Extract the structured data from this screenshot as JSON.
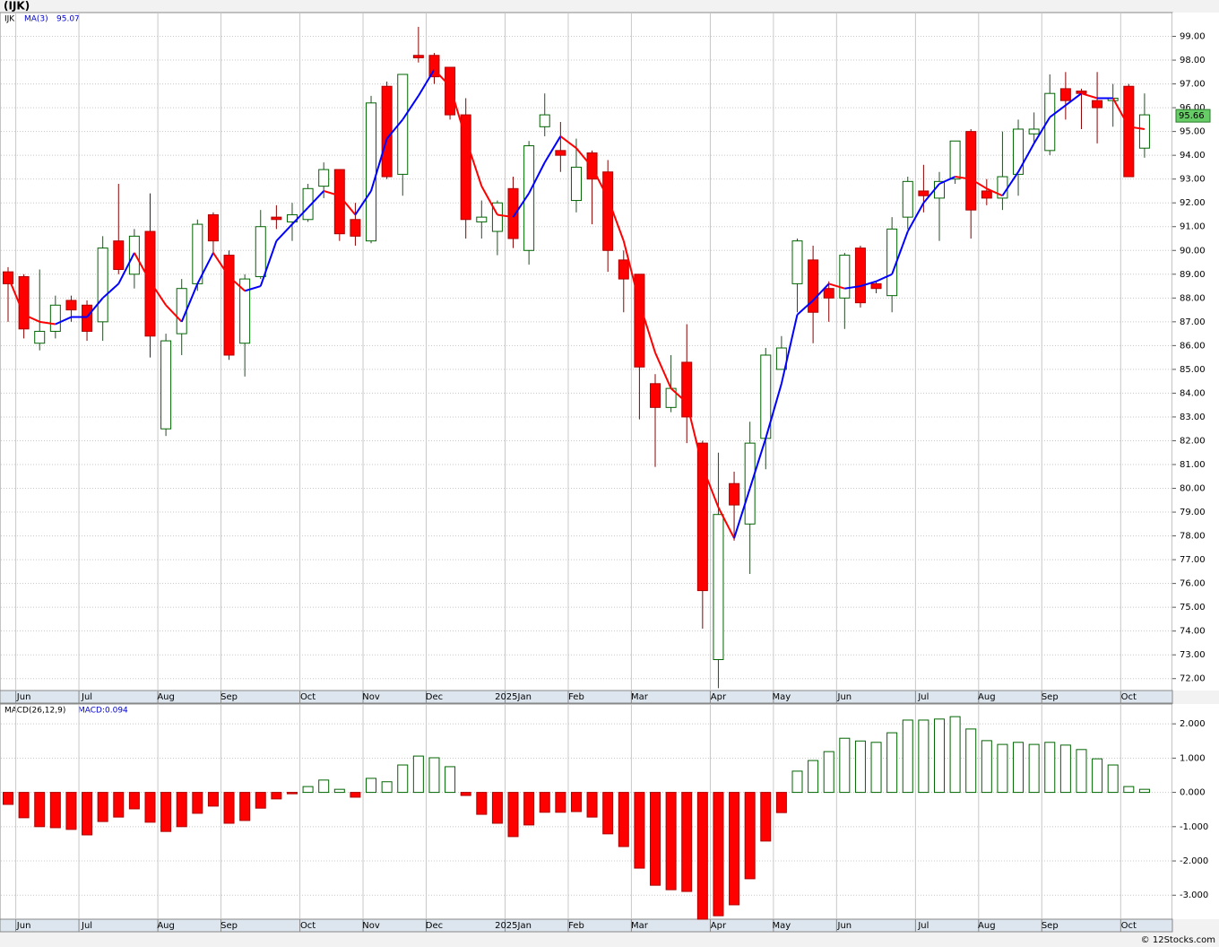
{
  "footer": "© 12Stocks.com",
  "chart_data": [
    {
      "type": "candlestick",
      "title": "(IJK)",
      "symbol": "IJK",
      "categories": [
        null,
        "Jun",
        null,
        null,
        null,
        "Jul",
        null,
        null,
        null,
        null,
        "Aug",
        null,
        null,
        null,
        "Sep",
        null,
        null,
        null,
        null,
        "Oct",
        null,
        null,
        null,
        "Nov",
        null,
        null,
        null,
        "Dec",
        null,
        null,
        null,
        null,
        "2025Jan",
        null,
        null,
        null,
        "Feb",
        null,
        null,
        null,
        "Mar",
        null,
        null,
        null,
        null,
        "Apr",
        null,
        null,
        null,
        "May",
        null,
        null,
        null,
        "Jun",
        null,
        null,
        null,
        null,
        "Jul",
        null,
        null,
        null,
        "Aug",
        null,
        null,
        null,
        "Sep",
        null,
        null,
        null,
        null,
        "Oct",
        null
      ],
      "open": [
        89.1,
        88.9,
        86.1,
        86.6,
        87.9,
        87.7,
        87.0,
        90.4,
        89.0,
        90.8,
        82.5,
        86.5,
        88.6,
        91.5,
        89.8,
        86.1,
        88.9,
        91.4,
        91.2,
        91.3,
        92.7,
        93.4,
        91.3,
        90.4,
        96.9,
        93.2,
        98.2,
        98.2,
        97.7,
        95.7,
        91.2,
        90.8,
        92.6,
        90.0,
        95.2,
        94.2,
        92.1,
        94.1,
        93.3,
        89.6,
        89.0,
        84.4,
        83.4,
        85.3,
        81.9,
        72.8,
        80.2,
        78.5,
        82.1,
        85.0,
        88.6,
        89.6,
        88.4,
        88.0,
        90.1,
        88.6,
        88.1,
        91.4,
        92.5,
        92.2,
        93.0,
        95.0,
        92.5,
        92.2,
        93.2,
        94.9,
        94.2,
        96.8,
        96.7,
        96.3,
        96.3,
        96.9,
        94.3
      ],
      "high": [
        89.3,
        89.0,
        89.2,
        88.1,
        88.1,
        87.9,
        90.6,
        92.8,
        90.9,
        92.4,
        86.5,
        88.8,
        91.3,
        91.6,
        90.0,
        89.0,
        91.7,
        91.9,
        92.0,
        92.8,
        93.7,
        93.4,
        92.0,
        96.5,
        97.1,
        97.4,
        99.4,
        98.3,
        97.7,
        96.4,
        92.1,
        92.1,
        93.1,
        94.6,
        96.6,
        95.4,
        94.7,
        94.2,
        93.8,
        90.0,
        89.0,
        84.8,
        85.6,
        86.9,
        82.0,
        81.5,
        80.7,
        82.8,
        85.9,
        86.4,
        90.5,
        90.2,
        88.7,
        89.9,
        90.2,
        88.7,
        91.4,
        93.1,
        93.6,
        93.3,
        94.6,
        95.1,
        93.0,
        95.0,
        95.5,
        95.8,
        97.4,
        97.5,
        96.8,
        97.5,
        97.0,
        97.0,
        96.6
      ],
      "low": [
        87.0,
        86.3,
        85.8,
        86.3,
        87.0,
        86.2,
        86.2,
        89.0,
        88.4,
        85.5,
        82.2,
        85.6,
        88.3,
        89.9,
        85.4,
        84.7,
        88.8,
        90.9,
        90.4,
        91.2,
        92.2,
        90.4,
        90.2,
        90.3,
        93.0,
        92.3,
        97.9,
        97.0,
        95.5,
        90.5,
        90.5,
        89.8,
        90.1,
        89.4,
        94.8,
        93.3,
        91.6,
        91.1,
        89.1,
        87.4,
        82.9,
        80.9,
        83.2,
        81.9,
        74.1,
        71.6,
        77.8,
        76.4,
        80.8,
        85.0,
        87.4,
        86.1,
        87.0,
        86.7,
        87.6,
        88.2,
        87.4,
        90.9,
        91.6,
        90.4,
        92.8,
        90.5,
        91.9,
        91.7,
        92.3,
        94.5,
        94.0,
        95.5,
        95.1,
        94.5,
        95.2,
        93.1,
        93.9
      ],
      "close": [
        88.6,
        86.7,
        86.6,
        87.7,
        87.5,
        86.6,
        90.1,
        89.2,
        90.6,
        86.4,
        86.2,
        88.4,
        91.1,
        90.4,
        85.6,
        88.8,
        91.0,
        91.3,
        91.5,
        92.6,
        93.4,
        90.7,
        90.6,
        96.2,
        93.1,
        97.4,
        98.1,
        97.3,
        95.7,
        91.3,
        91.4,
        92.0,
        90.5,
        94.4,
        95.7,
        94.0,
        93.5,
        93.0,
        90.0,
        88.8,
        85.1,
        83.4,
        84.2,
        83.0,
        75.7,
        78.9,
        79.3,
        81.9,
        85.6,
        85.9,
        90.4,
        87.4,
        88.0,
        89.8,
        87.8,
        88.4,
        90.9,
        92.9,
        92.3,
        92.9,
        94.6,
        91.7,
        92.2,
        93.1,
        95.1,
        95.1,
        96.6,
        96.3,
        96.6,
        96.0,
        96.4,
        93.1,
        95.7
      ],
      "up_color": "#006400",
      "down_color": "#ff0000",
      "ma": {
        "name": "MA(3)",
        "value": 95.07,
        "up_color": "#0000ff",
        "down_color": "#ff0000",
        "values": [
          88.9,
          87.3,
          87.0,
          86.9,
          87.2,
          87.2,
          88.0,
          88.6,
          89.9,
          88.7,
          87.7,
          87.0,
          88.6,
          89.9,
          88.9,
          88.3,
          88.5,
          90.4,
          91.1,
          91.8,
          92.5,
          92.3,
          91.5,
          92.5,
          94.7,
          95.5,
          96.5,
          97.6,
          96.9,
          94.7,
          92.7,
          91.5,
          91.4,
          92.4,
          93.7,
          94.8,
          94.3,
          93.5,
          92.2,
          90.4,
          87.8,
          85.7,
          84.2,
          83.6,
          80.9,
          79.2,
          77.9,
          80.0,
          82.1,
          84.4,
          87.3,
          87.9,
          88.6,
          88.4,
          88.5,
          88.7,
          89.0,
          90.8,
          92.0,
          92.8,
          93.1,
          93.0,
          92.6,
          92.3,
          93.3,
          94.5,
          95.6,
          96.1,
          96.6,
          96.4,
          96.4,
          95.2,
          95.1
        ]
      },
      "last_price": 95.66,
      "last_price_color": "#66cc66",
      "ylim": [
        71.5,
        100
      ],
      "yticks": [
        {
          "value": 72,
          "label": "72.00"
        },
        {
          "value": 73,
          "label": "73.00"
        },
        {
          "value": 74,
          "label": "74.00"
        },
        {
          "value": 75,
          "label": "75.00"
        },
        {
          "value": 76,
          "label": "76.00"
        },
        {
          "value": 77,
          "label": "77.00"
        },
        {
          "value": 78,
          "label": "78.00"
        },
        {
          "value": 79,
          "label": "79.00"
        },
        {
          "value": 80,
          "label": "80.00"
        },
        {
          "value": 81,
          "label": "81.00"
        },
        {
          "value": 82,
          "label": "82.00"
        },
        {
          "value": 83,
          "label": "83.00"
        },
        {
          "value": 84,
          "label": "84.00"
        },
        {
          "value": 85,
          "label": "85.00"
        },
        {
          "value": 86,
          "label": "86.00"
        },
        {
          "value": 87,
          "label": "87.00"
        },
        {
          "value": 88,
          "label": "88.00"
        },
        {
          "value": 89,
          "label": "89.00"
        },
        {
          "value": 90,
          "label": "90.00"
        },
        {
          "value": 91,
          "label": "91.00"
        },
        {
          "value": 92,
          "label": "92.00"
        },
        {
          "value": 93,
          "label": "93.00"
        },
        {
          "value": 94,
          "label": "94.00"
        },
        {
          "value": 95,
          "label": "95.00"
        },
        {
          "value": 96,
          "label": "96.00"
        },
        {
          "value": 97,
          "label": "97.00"
        },
        {
          "value": 98,
          "label": "98.00"
        },
        {
          "value": 99,
          "label": "99.00"
        }
      ],
      "grid": true
    },
    {
      "type": "macd",
      "title": "MACD(26,12,9)",
      "legend": "MACD:0.094",
      "categories": [
        null,
        "Jun",
        null,
        null,
        null,
        "Jul",
        null,
        null,
        null,
        null,
        "Aug",
        null,
        null,
        null,
        "Sep",
        null,
        null,
        null,
        null,
        "Oct",
        null,
        null,
        null,
        "Nov",
        null,
        null,
        null,
        "Dec",
        null,
        null,
        null,
        null,
        "2025Jan",
        null,
        null,
        null,
        "Feb",
        null,
        null,
        null,
        "Mar",
        null,
        null,
        null,
        null,
        "Apr",
        null,
        null,
        null,
        "May",
        null,
        null,
        null,
        "Jun",
        null,
        null,
        null,
        null,
        "Jul",
        null,
        null,
        null,
        "Aug",
        null,
        null,
        null,
        "Sep",
        null,
        null,
        null,
        null,
        "Oct",
        null
      ],
      "values": [
        -0.35,
        -0.74,
        -1.0,
        -1.03,
        -1.08,
        -1.24,
        -0.85,
        -0.72,
        -0.48,
        -0.87,
        -1.14,
        -1.0,
        -0.61,
        -0.4,
        -0.9,
        -0.82,
        -0.46,
        -0.19,
        -0.04,
        0.17,
        0.36,
        0.09,
        -0.14,
        0.41,
        0.31,
        0.8,
        1.06,
        1.01,
        0.75,
        -0.09,
        -0.64,
        -0.9,
        -1.29,
        -0.95,
        -0.58,
        -0.58,
        -0.56,
        -0.72,
        -1.21,
        -1.58,
        -2.21,
        -2.71,
        -2.84,
        -2.89,
        -3.7,
        -3.6,
        -3.28,
        -2.52,
        -1.42,
        -0.59,
        0.62,
        0.93,
        1.19,
        1.58,
        1.5,
        1.46,
        1.74,
        2.11,
        2.11,
        2.14,
        2.21,
        1.85,
        1.51,
        1.4,
        1.46,
        1.4,
        1.46,
        1.38,
        1.25,
        0.98,
        0.8,
        0.17,
        0.09
      ],
      "up_color": "#006400",
      "down_color": "#ff0000",
      "ylim": [
        -3.7,
        2.58
      ],
      "yticks": [
        {
          "value": 2,
          "label": "2.000"
        },
        {
          "value": 1,
          "label": "1.000"
        },
        {
          "value": 0,
          "label": "0.000"
        },
        {
          "value": -1,
          "label": "-1.000"
        },
        {
          "value": -2,
          "label": "-2.000"
        },
        {
          "value": -3,
          "label": "-3.000"
        }
      ],
      "grid": true
    }
  ]
}
